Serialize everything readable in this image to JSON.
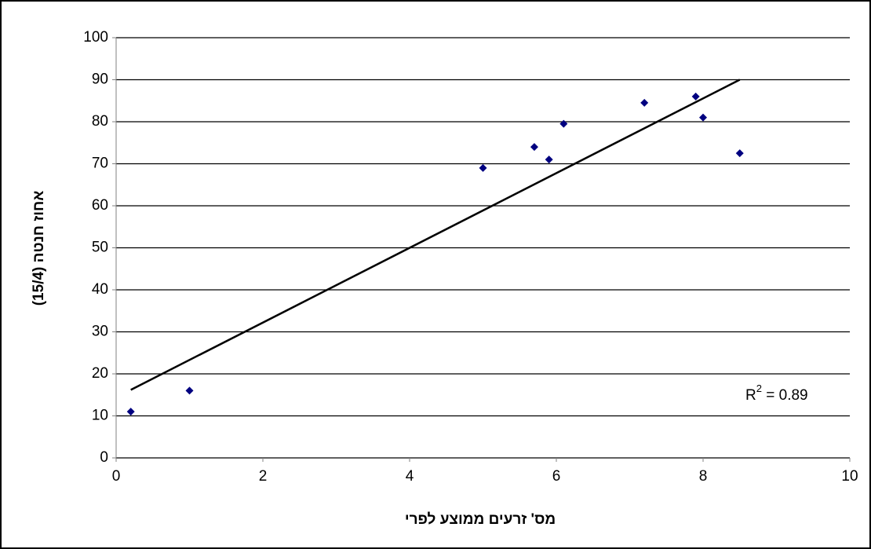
{
  "chart_data": {
    "type": "scatter",
    "x_label": "מס' זרעים ממוצע לפרי",
    "y_label": "אחוז חנטה (15/4)",
    "x": [
      0.2,
      1.0,
      5.0,
      5.7,
      5.9,
      6.1,
      7.2,
      7.9,
      8.0,
      8.5
    ],
    "series": [
      {
        "color": "#000080",
        "values": [
          11,
          16,
          69,
          74,
          71,
          79.5,
          84.5,
          86,
          81,
          72.5
        ]
      }
    ],
    "trendline": {
      "x": [
        0.2,
        8.5
      ],
      "y": [
        16.2,
        90
      ],
      "color": "#000000"
    },
    "annotation": {
      "base": "R",
      "sup": "2",
      "rest": " = 0.89"
    },
    "xlim": [
      0,
      10
    ],
    "xticks": [
      0,
      2,
      4,
      6,
      8,
      10
    ],
    "ylim": [
      0,
      100
    ],
    "yticks": [
      0,
      10,
      20,
      30,
      40,
      50,
      60,
      70,
      80,
      90,
      100
    ],
    "grid": true
  }
}
